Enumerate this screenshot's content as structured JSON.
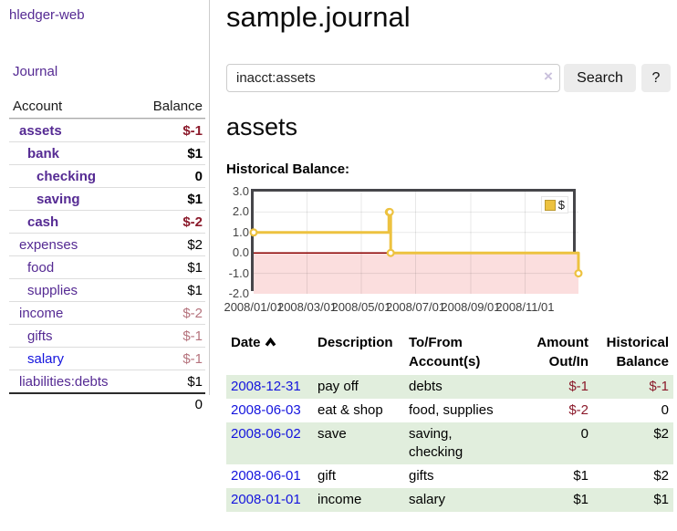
{
  "brand": "hledger-web",
  "nav": {
    "journal": "Journal"
  },
  "sidebar": {
    "header": {
      "account": "Account",
      "balance": "Balance"
    },
    "accounts": [
      {
        "name": "assets",
        "balance": "$-1"
      },
      {
        "name": "bank",
        "balance": "$1"
      },
      {
        "name": "checking",
        "balance": "0"
      },
      {
        "name": "saving",
        "balance": "$1"
      },
      {
        "name": "cash",
        "balance": "$-2"
      },
      {
        "name": "expenses",
        "balance": "$2"
      },
      {
        "name": "food",
        "balance": "$1"
      },
      {
        "name": "supplies",
        "balance": "$1"
      },
      {
        "name": "income",
        "balance": "$-2"
      },
      {
        "name": "gifts",
        "balance": "$-1"
      },
      {
        "name": "salary",
        "balance": "$-1"
      },
      {
        "name": "liabilities:debts",
        "balance": "$1"
      }
    ],
    "total": "0"
  },
  "header": {
    "title": "sample.journal"
  },
  "search": {
    "value": "inacct:assets",
    "clear": "×",
    "button": "Search",
    "help": "?"
  },
  "account_page": {
    "title": "assets",
    "chart_label": "Historical Balance:"
  },
  "chart_data": {
    "type": "line",
    "title": "Historical Balance",
    "step": true,
    "series": [
      {
        "name": "$",
        "color": "#edc240",
        "points": [
          [
            "2008-01-01",
            1
          ],
          [
            "2008-06-01",
            2
          ],
          [
            "2008-06-02",
            2
          ],
          [
            "2008-06-03",
            0
          ],
          [
            "2008-12-31",
            -1
          ]
        ]
      }
    ],
    "x_ticks": [
      "2008/01/01",
      "2008/03/01",
      "2008/05/01",
      "2008/07/01",
      "2008/09/01",
      "2008/11/01"
    ],
    "y_ticks": [
      3.0,
      2.0,
      1.0,
      0.0,
      -1.0,
      -2.0
    ],
    "xlim": [
      "2008-01-01",
      "2008-12-31"
    ],
    "ylim": [
      -2,
      3
    ],
    "grid": true,
    "legend_position": "top-right",
    "negative_region_color": "#fbdede",
    "zero_line_color": "#8b0000"
  },
  "table": {
    "headers": {
      "date": "Date",
      "description": "Description",
      "accounts": "To/From Account(s)",
      "amount": "Amount Out/In",
      "balance": "Historical Balance"
    },
    "rows": [
      {
        "date": "2008-12-31",
        "description": "pay off",
        "accounts": "debts",
        "amount": "$-1",
        "balance": "$-1"
      },
      {
        "date": "2008-06-03",
        "description": "eat & shop",
        "accounts": "food, supplies",
        "amount": "$-2",
        "balance": "0"
      },
      {
        "date": "2008-06-02",
        "description": "save",
        "accounts": "saving, checking",
        "amount": "0",
        "balance": "$2"
      },
      {
        "date": "2008-06-01",
        "description": "gift",
        "accounts": "gifts",
        "amount": "$1",
        "balance": "$2"
      },
      {
        "date": "2008-01-01",
        "description": "income",
        "accounts": "salary",
        "amount": "$1",
        "balance": "$1"
      }
    ]
  }
}
